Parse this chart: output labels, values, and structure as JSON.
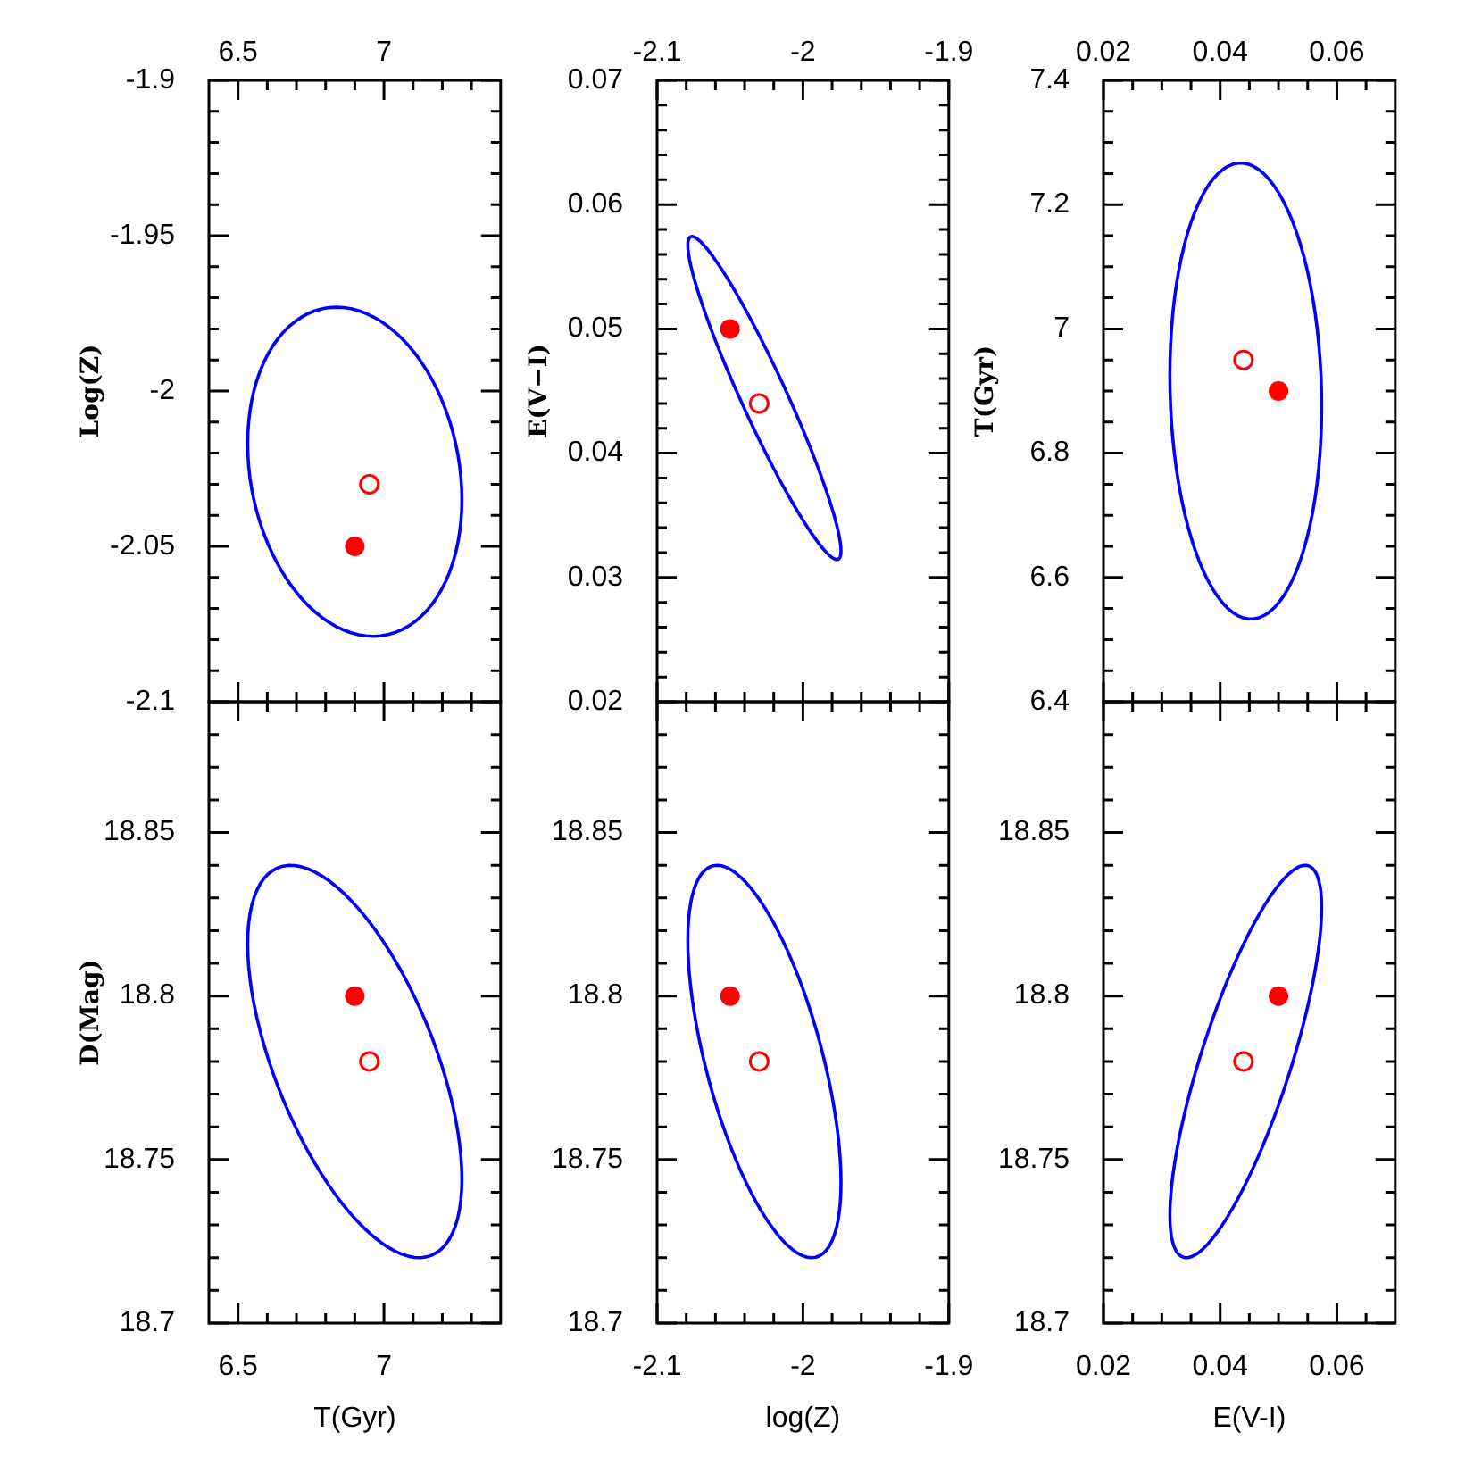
{
  "chart_data": [
    {
      "type": "scatter",
      "ylabel": "Log(Z)",
      "xlim": [
        6.4,
        7.4
      ],
      "xticks": [
        6.5,
        {
          "value": 6.6,
          "label": null
        },
        {
          "value": 6.7,
          "label": null
        },
        {
          "value": 6.8,
          "label": null
        },
        {
          "value": 6.9,
          "label": null
        },
        7,
        {
          "value": 7.1,
          "label": null
        },
        {
          "value": 7.2,
          "label": null
        },
        {
          "value": 7.3,
          "label": null
        }
      ],
      "ylim": [
        -2.1,
        -1.9
      ],
      "yticks": [
        -1.9,
        {
          "value": -1.91,
          "label": null
        },
        {
          "value": -1.92,
          "label": null
        },
        {
          "value": -1.93,
          "label": null
        },
        {
          "value": -1.94,
          "label": null
        },
        -1.95,
        {
          "value": -1.96,
          "label": null
        },
        {
          "value": -1.97,
          "label": null
        },
        {
          "value": -1.98,
          "label": null
        },
        {
          "value": -1.99,
          "label": null
        },
        -2,
        {
          "value": -2.01,
          "label": null
        },
        {
          "value": -2.02,
          "label": null
        },
        {
          "value": -2.03,
          "label": null
        },
        {
          "value": -2.04,
          "label": null
        },
        -2.05,
        {
          "value": -2.06,
          "label": null
        },
        {
          "value": -2.07,
          "label": null
        },
        {
          "value": -2.08,
          "label": null
        },
        {
          "value": -2.09,
          "label": null
        },
        -2.1
      ],
      "series": [
        {
          "type": "scatter",
          "color": "#ff0000",
          "marker": "circle",
          "x": [
            6.9
          ],
          "values": [
            -2.05
          ]
        },
        {
          "type": "scatter",
          "color": "#ff0000",
          "marker": "circle-open",
          "x": [
            6.95
          ],
          "values": [
            -2.03
          ]
        }
      ]
    },
    {
      "type": "scatter",
      "ylabel": "E(V−I)",
      "xlim": [
        -2.1,
        -1.9
      ],
      "xticks": [
        -2.1,
        {
          "value": -2.08,
          "label": null
        },
        {
          "value": -2.06,
          "label": null
        },
        {
          "value": -2.04,
          "label": null
        },
        {
          "value": -2.02,
          "label": null
        },
        -2,
        {
          "value": -1.98,
          "label": null
        },
        {
          "value": -1.96,
          "label": null
        },
        {
          "value": -1.94,
          "label": null
        },
        {
          "value": -1.92,
          "label": null
        },
        -1.9
      ],
      "ylim": [
        0.02,
        0.07
      ],
      "yticks": [
        0.02,
        {
          "value": 0.022,
          "label": null
        },
        {
          "value": 0.024,
          "label": null
        },
        {
          "value": 0.026,
          "label": null
        },
        {
          "value": 0.028,
          "label": null
        },
        0.03,
        {
          "value": 0.032,
          "label": null
        },
        {
          "value": 0.034,
          "label": null
        },
        {
          "value": 0.036,
          "label": null
        },
        {
          "value": 0.038,
          "label": null
        },
        0.04,
        {
          "value": 0.042,
          "label": null
        },
        {
          "value": 0.044,
          "label": null
        },
        {
          "value": 0.046,
          "label": null
        },
        {
          "value": 0.048,
          "label": null
        },
        0.05,
        {
          "value": 0.052,
          "label": null
        },
        {
          "value": 0.054,
          "label": null
        },
        {
          "value": 0.056,
          "label": null
        },
        {
          "value": 0.058,
          "label": null
        },
        0.06,
        {
          "value": 0.062,
          "label": null
        },
        {
          "value": 0.064,
          "label": null
        },
        {
          "value": 0.066,
          "label": null
        },
        {
          "value": 0.068,
          "label": null
        },
        0.07
      ],
      "series": [
        {
          "type": "scatter",
          "color": "#ff0000",
          "marker": "circle",
          "x": [
            -2.05
          ],
          "values": [
            0.05
          ]
        },
        {
          "type": "scatter",
          "color": "#ff0000",
          "marker": "circle-open",
          "x": [
            -2.03
          ],
          "values": [
            0.044
          ]
        }
      ]
    },
    {
      "type": "scatter",
      "ylabel": "T(Gyr)",
      "xlim": [
        0.02,
        0.07
      ],
      "xticks": [
        0.02,
        {
          "value": 0.025,
          "label": null
        },
        {
          "value": 0.03,
          "label": null
        },
        {
          "value": 0.035,
          "label": null
        },
        0.04,
        {
          "value": 0.045,
          "label": null
        },
        {
          "value": 0.05,
          "label": null
        },
        {
          "value": 0.055,
          "label": null
        },
        0.06,
        {
          "value": 0.065,
          "label": null
        }
      ],
      "ylim": [
        6.4,
        7.4
      ],
      "yticks": [
        6.4,
        {
          "value": 6.45,
          "label": null
        },
        {
          "value": 6.5,
          "label": null
        },
        {
          "value": 6.55,
          "label": null
        },
        6.6,
        {
          "value": 6.65,
          "label": null
        },
        {
          "value": 6.7,
          "label": null
        },
        {
          "value": 6.75,
          "label": null
        },
        6.8,
        {
          "value": 6.85,
          "label": null
        },
        {
          "value": 6.9,
          "label": null
        },
        {
          "value": 6.95,
          "label": null
        },
        7,
        {
          "value": 7.05,
          "label": null
        },
        {
          "value": 7.1,
          "label": null
        },
        {
          "value": 7.15,
          "label": null
        },
        7.2,
        {
          "value": 7.25,
          "label": null
        },
        {
          "value": 7.3,
          "label": null
        },
        {
          "value": 7.35,
          "label": null
        },
        7.4
      ],
      "series": [
        {
          "type": "scatter",
          "color": "#ff0000",
          "marker": "circle",
          "x": [
            0.05
          ],
          "values": [
            6.9
          ]
        },
        {
          "type": "scatter",
          "color": "#ff0000",
          "marker": "circle-open",
          "x": [
            0.044
          ],
          "values": [
            6.95
          ]
        }
      ]
    },
    {
      "type": "scatter",
      "xlabel": "T(Gyr)",
      "ylabel": "D(Mag)",
      "xlim": [
        6.4,
        7.4
      ],
      "xticks": [
        6.5,
        {
          "value": 6.6,
          "label": null
        },
        {
          "value": 6.7,
          "label": null
        },
        {
          "value": 6.8,
          "label": null
        },
        {
          "value": 6.9,
          "label": null
        },
        7,
        {
          "value": 7.1,
          "label": null
        },
        {
          "value": 7.2,
          "label": null
        },
        {
          "value": 7.3,
          "label": null
        }
      ],
      "ylim": [
        18.7,
        18.89
      ],
      "yticks": [
        18.7,
        {
          "value": 18.71,
          "label": null
        },
        {
          "value": 18.72,
          "label": null
        },
        {
          "value": 18.73,
          "label": null
        },
        {
          "value": 18.74,
          "label": null
        },
        18.75,
        {
          "value": 18.76,
          "label": null
        },
        {
          "value": 18.77,
          "label": null
        },
        {
          "value": 18.78,
          "label": null
        },
        {
          "value": 18.79,
          "label": null
        },
        18.8,
        {
          "value": 18.81,
          "label": null
        },
        {
          "value": 18.82,
          "label": null
        },
        {
          "value": 18.83,
          "label": null
        },
        {
          "value": 18.84,
          "label": null
        },
        18.85,
        {
          "value": 18.86,
          "label": null
        },
        {
          "value": 18.87,
          "label": null
        },
        {
          "value": 18.88,
          "label": null
        }
      ],
      "series": [
        {
          "type": "scatter",
          "color": "#ff0000",
          "marker": "circle",
          "x": [
            6.9
          ],
          "values": [
            18.8
          ]
        },
        {
          "type": "scatter",
          "color": "#ff0000",
          "marker": "circle-open",
          "x": [
            6.95
          ],
          "values": [
            18.78
          ]
        }
      ]
    },
    {
      "type": "scatter",
      "xlabel": "log(Z)",
      "xlim": [
        -2.1,
        -1.9
      ],
      "xticks": [
        -2.1,
        {
          "value": -2.08,
          "label": null
        },
        {
          "value": -2.06,
          "label": null
        },
        {
          "value": -2.04,
          "label": null
        },
        {
          "value": -2.02,
          "label": null
        },
        -2,
        {
          "value": -1.98,
          "label": null
        },
        {
          "value": -1.96,
          "label": null
        },
        {
          "value": -1.94,
          "label": null
        },
        {
          "value": -1.92,
          "label": null
        },
        -1.9
      ],
      "ylim": [
        18.7,
        18.89
      ],
      "yticks": [
        18.7,
        {
          "value": 18.71,
          "label": null
        },
        {
          "value": 18.72,
          "label": null
        },
        {
          "value": 18.73,
          "label": null
        },
        {
          "value": 18.74,
          "label": null
        },
        18.75,
        {
          "value": 18.76,
          "label": null
        },
        {
          "value": 18.77,
          "label": null
        },
        {
          "value": 18.78,
          "label": null
        },
        {
          "value": 18.79,
          "label": null
        },
        18.8,
        {
          "value": 18.81,
          "label": null
        },
        {
          "value": 18.82,
          "label": null
        },
        {
          "value": 18.83,
          "label": null
        },
        {
          "value": 18.84,
          "label": null
        },
        18.85,
        {
          "value": 18.86,
          "label": null
        },
        {
          "value": 18.87,
          "label": null
        },
        {
          "value": 18.88,
          "label": null
        }
      ],
      "series": [
        {
          "type": "scatter",
          "color": "#ff0000",
          "marker": "circle",
          "x": [
            -2.05
          ],
          "values": [
            18.8
          ]
        },
        {
          "type": "scatter",
          "color": "#ff0000",
          "marker": "circle-open",
          "x": [
            -2.03
          ],
          "values": [
            18.78
          ]
        }
      ]
    },
    {
      "type": "scatter",
      "xlabel": "E(V-I)",
      "xlim": [
        0.02,
        0.07
      ],
      "xticks": [
        0.02,
        {
          "value": 0.025,
          "label": null
        },
        {
          "value": 0.03,
          "label": null
        },
        {
          "value": 0.035,
          "label": null
        },
        0.04,
        {
          "value": 0.045,
          "label": null
        },
        {
          "value": 0.05,
          "label": null
        },
        {
          "value": 0.055,
          "label": null
        },
        0.06,
        {
          "value": 0.065,
          "label": null
        }
      ],
      "ylim": [
        18.7,
        18.89
      ],
      "yticks": [
        18.7,
        {
          "value": 18.71,
          "label": null
        },
        {
          "value": 18.72,
          "label": null
        },
        {
          "value": 18.73,
          "label": null
        },
        {
          "value": 18.74,
          "label": null
        },
        18.75,
        {
          "value": 18.76,
          "label": null
        },
        {
          "value": 18.77,
          "label": null
        },
        {
          "value": 18.78,
          "label": null
        },
        {
          "value": 18.79,
          "label": null
        },
        18.8,
        {
          "value": 18.81,
          "label": null
        },
        {
          "value": 18.82,
          "label": null
        },
        {
          "value": 18.83,
          "label": null
        },
        {
          "value": 18.84,
          "label": null
        },
        18.85,
        {
          "value": 18.86,
          "label": null
        },
        {
          "value": 18.87,
          "label": null
        },
        {
          "value": 18.88,
          "label": null
        }
      ],
      "series": [
        {
          "type": "scatter",
          "color": "#ff0000",
          "marker": "circle",
          "x": [
            0.05
          ],
          "values": [
            18.8
          ]
        },
        {
          "type": "scatter",
          "color": "#ff0000",
          "marker": "circle-open",
          "x": [
            0.044
          ],
          "values": [
            18.78
          ]
        }
      ]
    }
  ]
}
